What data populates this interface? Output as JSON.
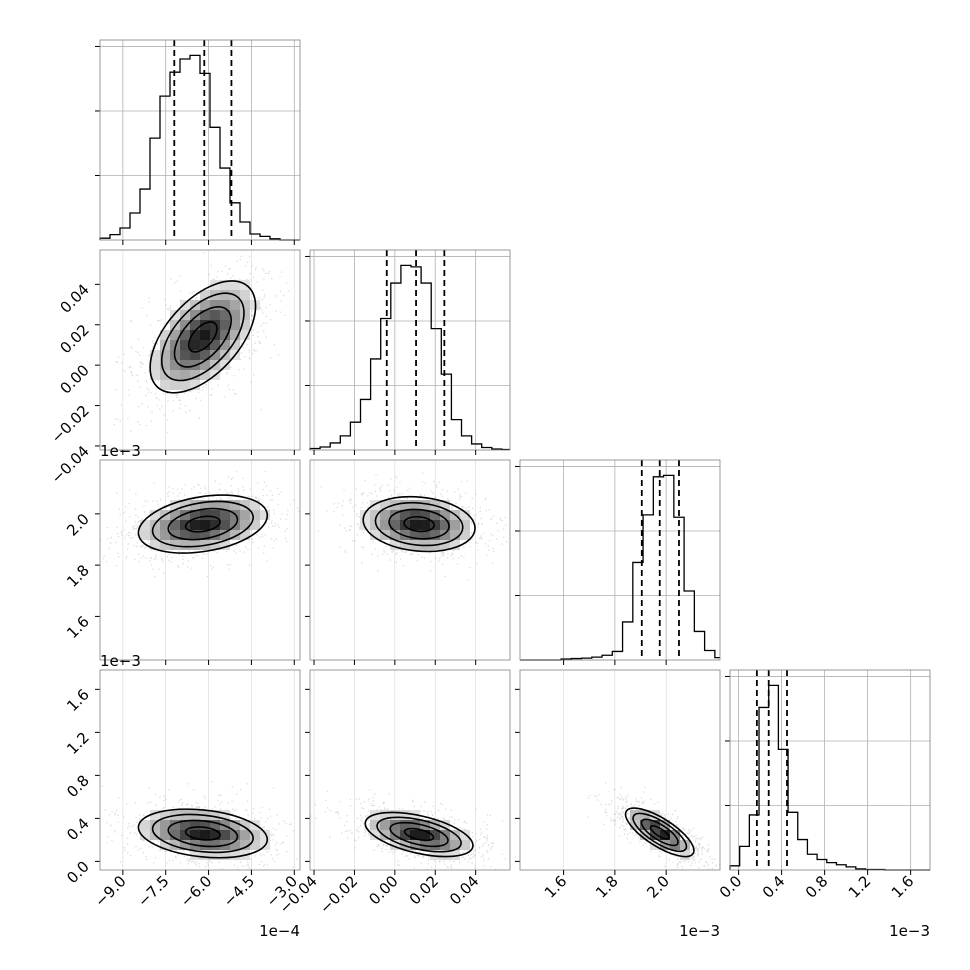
{
  "chart_data": {
    "type": "corner",
    "parameters": 4,
    "colors": {
      "ink": "#000000",
      "grid": "#b0b0b0",
      "scatter": "#808080"
    },
    "grid": true,
    "quantiles": [
      0.16,
      0.5,
      0.84
    ],
    "axes": [
      {
        "index": 0,
        "range": [
          -0.00098,
          -0.00028
        ],
        "ticks": [
          -0.0009,
          -0.00075,
          -0.0006,
          -0.00045,
          -0.0003
        ],
        "tick_labels": [
          "−9.0",
          "−7.5",
          "−6.0",
          "−4.5",
          "−3.0"
        ],
        "offset_label": "1e−4"
      },
      {
        "index": 1,
        "range": [
          -0.042,
          0.057
        ],
        "ticks": [
          -0.04,
          -0.02,
          0.0,
          0.02,
          0.04
        ],
        "tick_labels": [
          "−0.04",
          "−0.02",
          "0.00",
          "0.02",
          "0.04"
        ],
        "offset_label": ""
      },
      {
        "index": 2,
        "range": [
          0.00143,
          0.00221
        ],
        "ticks": [
          0.0016,
          0.0018,
          0.002
        ],
        "tick_labels": [
          "1.6",
          "1.8",
          "2.0"
        ],
        "offset_label": "1e−3"
      },
      {
        "index": 3,
        "range": [
          -8e-05,
          0.00178
        ],
        "ticks": [
          0.0,
          0.0004,
          0.0008,
          0.0012,
          0.0016
        ],
        "tick_labels": [
          "0.0",
          "0.4",
          "0.8",
          "1.2",
          "1.6"
        ],
        "offset_label": "1e−3"
      }
    ],
    "marginals": [
      {
        "param": 0,
        "bin_edges": [
          -0.00098,
          -0.000945,
          -0.00091,
          -0.000875,
          -0.00084,
          -0.000805,
          -0.00077,
          -0.000735,
          -0.0007,
          -0.000665,
          -0.00063,
          -0.000595,
          -0.00056,
          -0.000525,
          -0.00049,
          -0.000455,
          -0.00042,
          -0.000385,
          -0.00035,
          -0.000315,
          -0.00028
        ],
        "counts": [
          3,
          9,
          20,
          45,
          85,
          170,
          240,
          280,
          302,
          308,
          278,
          188,
          120,
          62,
          30,
          10,
          6,
          2,
          0,
          0
        ],
        "quantile_values": [
          -0.00072,
          -0.000615,
          -0.00052
        ]
      },
      {
        "param": 1,
        "bin_edges": [
          -0.042,
          -0.037,
          -0.032,
          -0.027,
          -0.022,
          -0.017,
          -0.012,
          -0.007,
          -0.002,
          0.003,
          0.008,
          0.013,
          0.018,
          0.023,
          0.028,
          0.033,
          0.038,
          0.043,
          0.048,
          0.053,
          0.057
        ],
        "counts": [
          3,
          6,
          14,
          28,
          55,
          100,
          180,
          260,
          330,
          365,
          362,
          330,
          240,
          150,
          60,
          28,
          12,
          5,
          2,
          1
        ],
        "quantile_values": [
          -0.004,
          0.0105,
          0.0245
        ]
      },
      {
        "param": 2,
        "bin_edges": [
          0.00143,
          0.00147,
          0.00151,
          0.00155,
          0.00159,
          0.00163,
          0.00167,
          0.00171,
          0.00175,
          0.00179,
          0.00183,
          0.00187,
          0.00191,
          0.00195,
          0.00199,
          0.00203,
          0.00207,
          0.00211,
          0.00215,
          0.00219,
          0.00221
        ],
        "counts": [
          0,
          0,
          0,
          0,
          2,
          3,
          4,
          6,
          10,
          18,
          80,
          205,
          305,
          385,
          388,
          300,
          145,
          60,
          20,
          5
        ],
        "quantile_values": [
          0.001905,
          0.001975,
          0.00205
        ]
      },
      {
        "param": 3,
        "bin_edges": [
          -8e-05,
          1e-05,
          0.0001,
          0.00019,
          0.00028,
          0.00037,
          0.00046,
          0.00055,
          0.00064,
          0.00073,
          0.00082,
          0.00091,
          0.001,
          0.00109,
          0.00118,
          0.00127,
          0.00136,
          0.00145,
          0.00154,
          0.00163,
          0.00178
        ],
        "counts": [
          8,
          45,
          105,
          310,
          352,
          230,
          110,
          58,
          30,
          20,
          14,
          10,
          6,
          2,
          1,
          1,
          0,
          0,
          0,
          0
        ],
        "quantile_values": [
          0.00017,
          0.00028,
          0.00045
        ]
      }
    ],
    "joint_densities": [
      {
        "x_param": 0,
        "y_param": 1,
        "center": [
          -0.00062,
          0.014
        ],
        "sigma": [
          9e-05,
          0.0135
        ],
        "correlation": 0.55
      },
      {
        "x_param": 0,
        "y_param": 2,
        "center": [
          -0.00062,
          0.00196
        ],
        "sigma": [
          0.00011,
          5.5e-05
        ],
        "correlation": 0.3
      },
      {
        "x_param": 1,
        "y_param": 2,
        "center": [
          0.012,
          0.00196
        ],
        "sigma": [
          0.0135,
          5.2e-05
        ],
        "correlation": -0.15
      },
      {
        "x_param": 0,
        "y_param": 3,
        "center": [
          -0.00062,
          0.00026
        ],
        "sigma": [
          0.00011,
          0.00011
        ],
        "correlation": -0.25
      },
      {
        "x_param": 1,
        "y_param": 3,
        "center": [
          0.012,
          0.00025
        ],
        "sigma": [
          0.013,
          0.0001
        ],
        "correlation": -0.5
      },
      {
        "x_param": 2,
        "y_param": 3,
        "center": [
          0.001975,
          0.00027
        ],
        "sigma": [
          6.5e-05,
          0.00011
        ],
        "correlation": -0.75
      }
    ]
  }
}
